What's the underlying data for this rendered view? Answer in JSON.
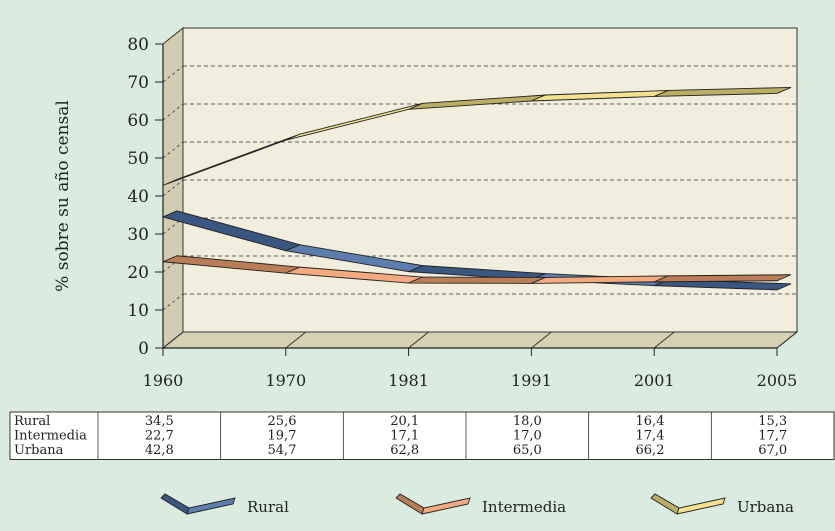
{
  "chart_data": {
    "type": "line",
    "title": "",
    "ylabel": "% sobre su año censal",
    "xlabel": "",
    "ylim": [
      0,
      80
    ],
    "yticks": [
      0,
      10,
      20,
      30,
      40,
      50,
      60,
      70,
      80
    ],
    "categories": [
      "1960",
      "1970",
      "1981",
      "1991",
      "2001",
      "2005"
    ],
    "series": [
      {
        "name": "Rural",
        "color": "#4a6fa5",
        "values": [
          34.5,
          25.6,
          20.1,
          18.0,
          16.4,
          15.3
        ],
        "labels": [
          "34,5",
          "25,6",
          "20,1",
          "18,0",
          "16,4",
          "15,3"
        ]
      },
      {
        "name": "Intermedia",
        "color": "#f0a070",
        "values": [
          22.7,
          19.7,
          17.1,
          17.0,
          17.4,
          17.7
        ],
        "labels": [
          "22,7",
          "19,7",
          "17,1",
          "17,0",
          "17,4",
          "17,7"
        ]
      },
      {
        "name": "Urbana",
        "color": "#f2de80",
        "values": [
          42.8,
          54.7,
          62.8,
          65.0,
          66.2,
          67.0
        ],
        "labels": [
          "42,8",
          "54,7",
          "62,8",
          "65,0",
          "66,2",
          "67,0"
        ]
      }
    ],
    "grid": true,
    "legend": "bottom",
    "style": "3d-ribbon"
  }
}
